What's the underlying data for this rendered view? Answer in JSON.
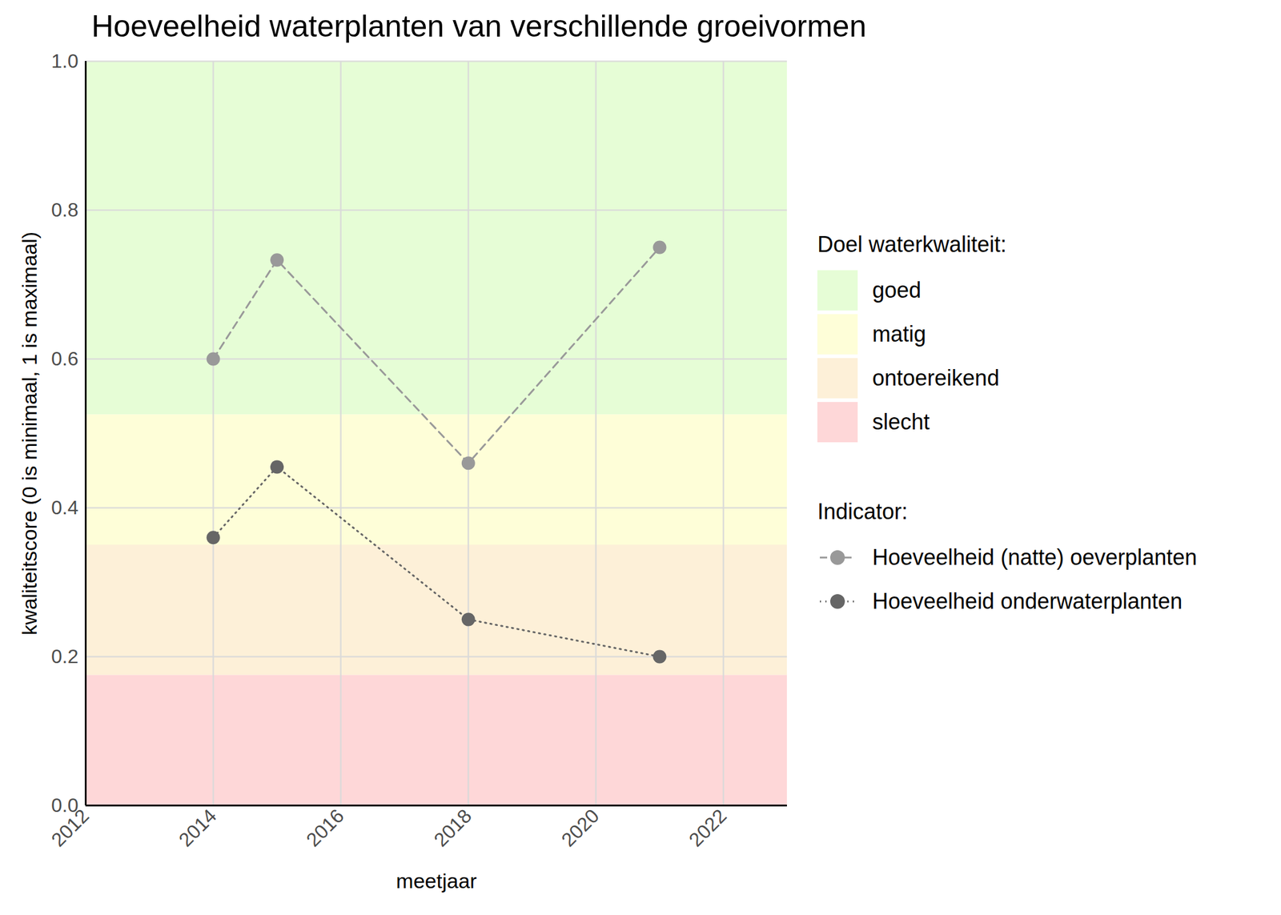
{
  "chart_data": {
    "type": "line",
    "title": "Hoeveelheid waterplanten van verschillende groeivormen",
    "x_label": "meetjaar",
    "y_label": "kwaliteitscore (0 is minimaal, 1 is maximaal)",
    "x": [
      2014,
      2015,
      2018,
      2021
    ],
    "series": [
      {
        "name": "Hoeveelheid (natte) oeverplanten",
        "color": "#999999",
        "line_style": "dashed",
        "marker": "circle",
        "values": [
          0.6,
          0.733,
          0.46,
          0.75
        ]
      },
      {
        "name": "Hoeveelheid onderwaterplanten",
        "color": "#666666",
        "line_style": "dotted",
        "marker": "circle",
        "values": [
          0.36,
          0.455,
          0.25,
          0.2
        ]
      }
    ],
    "band_legend_title": "Doel waterkwaliteit:",
    "series_legend_title": "Indicator:",
    "bands": [
      {
        "name": "goed",
        "color": "#e6fdd6",
        "from": 0.525,
        "to": 1.0
      },
      {
        "name": "matig",
        "color": "#fefed8",
        "from": 0.35,
        "to": 0.525
      },
      {
        "name": "ontoereikend",
        "color": "#fdf0d8",
        "from": 0.175,
        "to": 0.35
      },
      {
        "name": "slecht",
        "color": "#fed7d8",
        "from": 0.0,
        "to": 0.175
      }
    ],
    "xlim": [
      2012,
      2023
    ],
    "xticks": [
      2012,
      2014,
      2016,
      2018,
      2020,
      2022
    ],
    "ylim": [
      0,
      1
    ],
    "yticks": [
      {
        "value": 0,
        "label": "0.0"
      },
      0.2,
      0.4,
      0.6,
      0.8,
      {
        "value": 1,
        "label": "1.0"
      }
    ],
    "grid": true,
    "legend": "right"
  }
}
